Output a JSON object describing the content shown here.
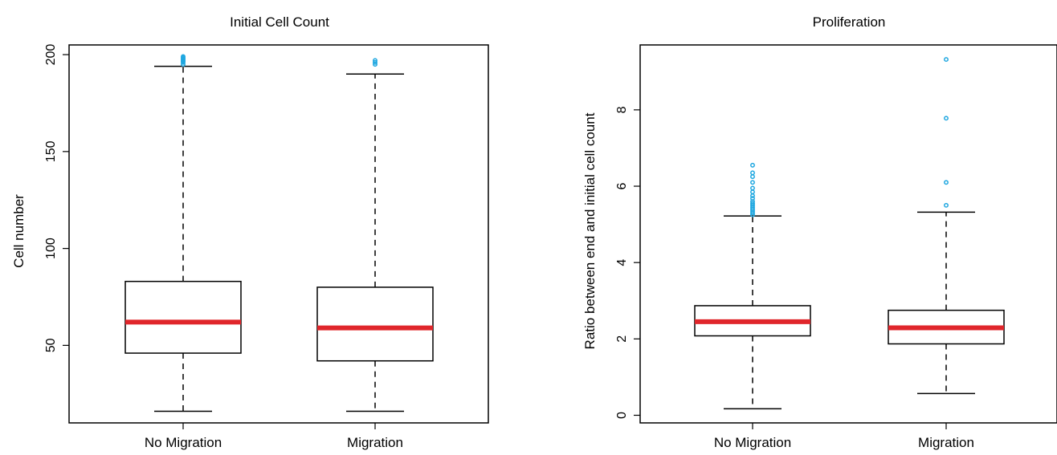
{
  "chart_data": [
    {
      "type": "boxplot",
      "title": "Initial Cell Count",
      "xlabel": "",
      "ylabel": "Cell number",
      "ylim": [
        10,
        205
      ],
      "yticks": [
        50,
        100,
        150,
        200
      ],
      "categories": [
        "No Migration",
        "Migration"
      ],
      "boxes": [
        {
          "category": "No Migration",
          "whisker_low": 16,
          "q1": 46,
          "median": 62,
          "q3": 83,
          "whisker_high": 194,
          "outliers": [
            195,
            196,
            196.5,
            197,
            197.5,
            198,
            198.5,
            199
          ]
        },
        {
          "category": "Migration",
          "whisker_low": 16,
          "q1": 42,
          "median": 59,
          "q3": 80,
          "whisker_high": 190,
          "outliers": [
            195,
            196,
            197
          ]
        }
      ]
    },
    {
      "type": "boxplot",
      "title": "Proliferation",
      "xlabel": "",
      "ylabel": "Ratio between end and initial cell count",
      "ylim": [
        -0.2,
        9.7
      ],
      "yticks": [
        0,
        2,
        4,
        6,
        8
      ],
      "categories": [
        "No Migration",
        "Migration"
      ],
      "boxes": [
        {
          "category": "No Migration",
          "whisker_low": 0.17,
          "q1": 2.08,
          "median": 2.45,
          "q3": 2.87,
          "whisker_high": 5.22,
          "outliers": [
            5.25,
            5.3,
            5.35,
            5.4,
            5.45,
            5.5,
            5.55,
            5.6,
            5.68,
            5.75,
            5.85,
            5.95,
            6.1,
            6.25,
            6.35,
            6.55
          ]
        },
        {
          "category": "Migration",
          "whisker_low": 0.57,
          "q1": 1.87,
          "median": 2.29,
          "q3": 2.75,
          "whisker_high": 5.32,
          "outliers": [
            5.5,
            6.1,
            7.78,
            9.32
          ]
        }
      ]
    }
  ],
  "colors": {
    "median": "#e0262b",
    "outlier": "#1fa7e0",
    "box": "#000000"
  }
}
